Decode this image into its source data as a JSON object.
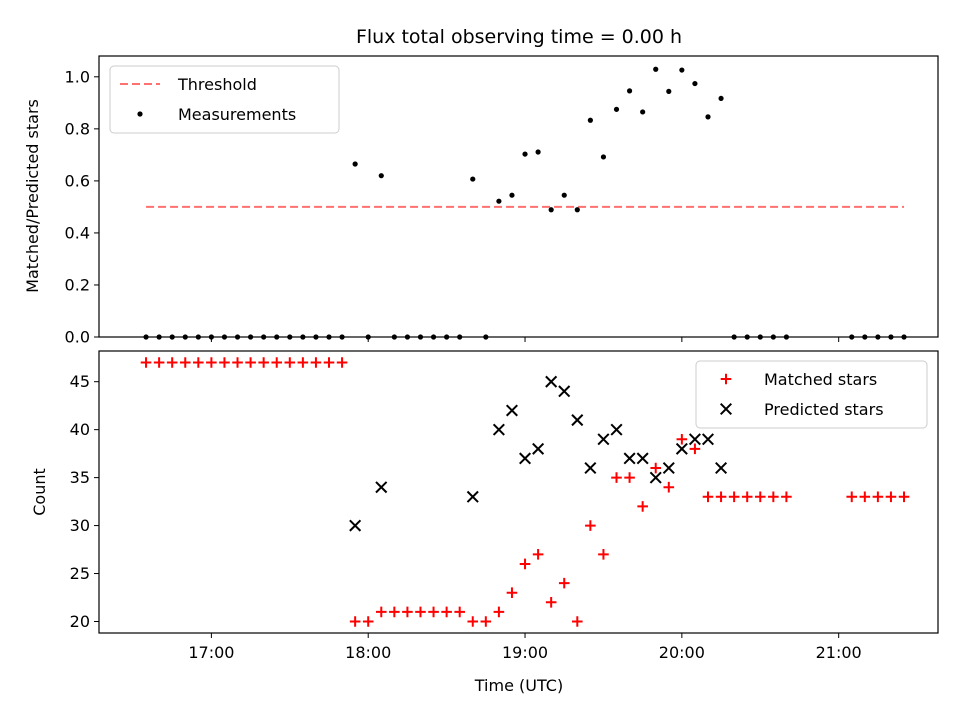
{
  "chart_data": [
    {
      "type": "scatter",
      "title": "Flux total observing time = 0.00 h",
      "xlabel": "",
      "ylabel": "Matched/Predicted stars",
      "xlim": [
        "16:17",
        "21:38"
      ],
      "ylim": [
        0,
        1.08
      ],
      "yticks": [
        "0.0",
        "0.2",
        "0.4",
        "0.6",
        "0.8",
        "1.0"
      ],
      "grid": false,
      "legend_position": "upper-left",
      "threshold": {
        "name": "Threshold",
        "value": 0.5,
        "x_range": [
          "16:35",
          "21:25"
        ],
        "color": "#ff7070",
        "style": "dashed"
      },
      "series": [
        {
          "name": "Measurements",
          "color": "#000000",
          "marker": "dot",
          "points": [
            [
              "16:35",
              0
            ],
            [
              "16:40",
              0
            ],
            [
              "16:45",
              0
            ],
            [
              "16:50",
              0
            ],
            [
              "16:55",
              0
            ],
            [
              "17:00",
              0
            ],
            [
              "17:05",
              0
            ],
            [
              "17:10",
              0
            ],
            [
              "17:15",
              0
            ],
            [
              "17:20",
              0
            ],
            [
              "17:25",
              0
            ],
            [
              "17:30",
              0
            ],
            [
              "17:35",
              0
            ],
            [
              "17:40",
              0
            ],
            [
              "17:45",
              0
            ],
            [
              "17:50",
              0
            ],
            [
              "17:55",
              0.665
            ],
            [
              "18:00",
              0
            ],
            [
              "18:05",
              0.62
            ],
            [
              "18:10",
              0
            ],
            [
              "18:15",
              0
            ],
            [
              "18:20",
              0
            ],
            [
              "18:25",
              0
            ],
            [
              "18:30",
              0
            ],
            [
              "18:35",
              0
            ],
            [
              "18:40",
              0.607
            ],
            [
              "18:45",
              0
            ],
            [
              "18:50",
              0.522
            ],
            [
              "18:55",
              0.545
            ],
            [
              "19:00",
              0.703
            ],
            [
              "19:05",
              0.711
            ],
            [
              "19:10",
              0.489
            ],
            [
              "19:15",
              0.545
            ],
            [
              "19:20",
              0.489
            ],
            [
              "19:25",
              0.833
            ],
            [
              "19:30",
              0.692
            ],
            [
              "19:35",
              0.875
            ],
            [
              "19:40",
              0.946
            ],
            [
              "19:45",
              0.865
            ],
            [
              "19:50",
              1.029
            ],
            [
              "19:55",
              0.944
            ],
            [
              "20:00",
              1.026
            ],
            [
              "20:05",
              0.974
            ],
            [
              "20:10",
              0.846
            ],
            [
              "20:15",
              0.917
            ],
            [
              "20:20",
              0
            ],
            [
              "20:25",
              0
            ],
            [
              "20:30",
              0
            ],
            [
              "20:35",
              0
            ],
            [
              "20:40",
              0
            ],
            [
              "21:05",
              0
            ],
            [
              "21:10",
              0
            ],
            [
              "21:15",
              0
            ],
            [
              "21:20",
              0
            ],
            [
              "21:25",
              0
            ]
          ]
        }
      ]
    },
    {
      "type": "scatter",
      "title": "",
      "xlabel": "Time (UTC)",
      "ylabel": "Count",
      "xlim": [
        "16:17",
        "21:38"
      ],
      "ylim": [
        18.8,
        48.2
      ],
      "yticks": [
        "20",
        "25",
        "30",
        "35",
        "40",
        "45"
      ],
      "xticks": [
        "17:00",
        "18:00",
        "19:00",
        "20:00",
        "21:00"
      ],
      "grid": false,
      "legend_position": "upper-right",
      "series": [
        {
          "name": "Matched stars",
          "color": "#ff0000",
          "marker": "plus",
          "points": [
            [
              "16:35",
              47
            ],
            [
              "16:40",
              47
            ],
            [
              "16:45",
              47
            ],
            [
              "16:50",
              47
            ],
            [
              "16:55",
              47
            ],
            [
              "17:00",
              47
            ],
            [
              "17:05",
              47
            ],
            [
              "17:10",
              47
            ],
            [
              "17:15",
              47
            ],
            [
              "17:20",
              47
            ],
            [
              "17:25",
              47
            ],
            [
              "17:30",
              47
            ],
            [
              "17:35",
              47
            ],
            [
              "17:40",
              47
            ],
            [
              "17:45",
              47
            ],
            [
              "17:50",
              47
            ],
            [
              "17:55",
              20
            ],
            [
              "18:00",
              20
            ],
            [
              "18:05",
              21
            ],
            [
              "18:10",
              21
            ],
            [
              "18:15",
              21
            ],
            [
              "18:20",
              21
            ],
            [
              "18:25",
              21
            ],
            [
              "18:30",
              21
            ],
            [
              "18:35",
              21
            ],
            [
              "18:40",
              20
            ],
            [
              "18:45",
              20
            ],
            [
              "18:50",
              21
            ],
            [
              "18:55",
              23
            ],
            [
              "19:00",
              26
            ],
            [
              "19:05",
              27
            ],
            [
              "19:10",
              22
            ],
            [
              "19:15",
              24
            ],
            [
              "19:20",
              20
            ],
            [
              "19:25",
              30
            ],
            [
              "19:30",
              27
            ],
            [
              "19:35",
              35
            ],
            [
              "19:40",
              35
            ],
            [
              "19:45",
              32
            ],
            [
              "19:50",
              36
            ],
            [
              "19:55",
              34
            ],
            [
              "20:00",
              39
            ],
            [
              "20:05",
              38
            ],
            [
              "20:10",
              33
            ],
            [
              "20:15",
              33
            ],
            [
              "20:20",
              33
            ],
            [
              "20:25",
              33
            ],
            [
              "20:30",
              33
            ],
            [
              "20:35",
              33
            ],
            [
              "20:40",
              33
            ],
            [
              "21:05",
              33
            ],
            [
              "21:10",
              33
            ],
            [
              "21:15",
              33
            ],
            [
              "21:20",
              33
            ],
            [
              "21:25",
              33
            ]
          ]
        },
        {
          "name": "Predicted stars",
          "color": "#000000",
          "marker": "x",
          "points": [
            [
              "17:55",
              30
            ],
            [
              "18:05",
              34
            ],
            [
              "18:40",
              33
            ],
            [
              "18:50",
              40
            ],
            [
              "18:55",
              42
            ],
            [
              "19:00",
              37
            ],
            [
              "19:05",
              38
            ],
            [
              "19:10",
              45
            ],
            [
              "19:15",
              44
            ],
            [
              "19:20",
              41
            ],
            [
              "19:25",
              36
            ],
            [
              "19:30",
              39
            ],
            [
              "19:35",
              40
            ],
            [
              "19:40",
              37
            ],
            [
              "19:45",
              37
            ],
            [
              "19:50",
              35
            ],
            [
              "19:55",
              36
            ],
            [
              "20:00",
              38
            ],
            [
              "20:05",
              39
            ],
            [
              "20:10",
              39
            ],
            [
              "20:15",
              36
            ]
          ]
        }
      ]
    }
  ]
}
